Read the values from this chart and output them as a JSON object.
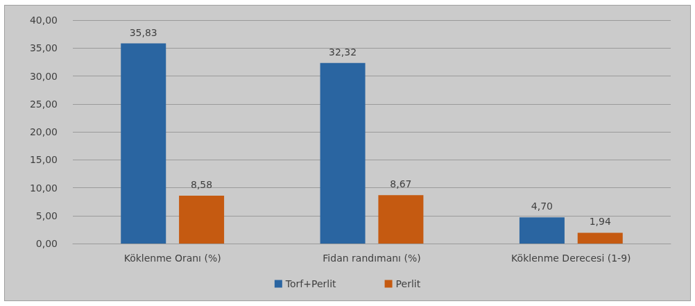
{
  "chart_data": {
    "type": "bar",
    "categories": [
      "Köklenme Oranı (%)",
      "Fidan randımanı (%)",
      "Köklenme Derecesi (1-9)"
    ],
    "series": [
      {
        "name": "Torf+Perlit",
        "color": "#2a65a1",
        "values": [
          35.83,
          32.32,
          4.7
        ],
        "value_labels": [
          "35,83",
          "32,32",
          "4,70"
        ]
      },
      {
        "name": "Perlit",
        "color": "#c55a11",
        "values": [
          8.58,
          8.67,
          1.94
        ],
        "value_labels": [
          "8,58",
          "8,67",
          "1,94"
        ]
      }
    ],
    "ylim": [
      0,
      40
    ],
    "yticks": [
      {
        "value": 0,
        "label": "0,00"
      },
      {
        "value": 5,
        "label": "5,00"
      },
      {
        "value": 10,
        "label": "10,00"
      },
      {
        "value": 15,
        "label": "15,00"
      },
      {
        "value": 20,
        "label": "20,00"
      },
      {
        "value": 25,
        "label": "25,00"
      },
      {
        "value": 30,
        "label": "30,00"
      },
      {
        "value": 35,
        "label": "35,00"
      },
      {
        "value": 40,
        "label": "40,00"
      }
    ],
    "grid": "y",
    "legend": "bottom"
  }
}
